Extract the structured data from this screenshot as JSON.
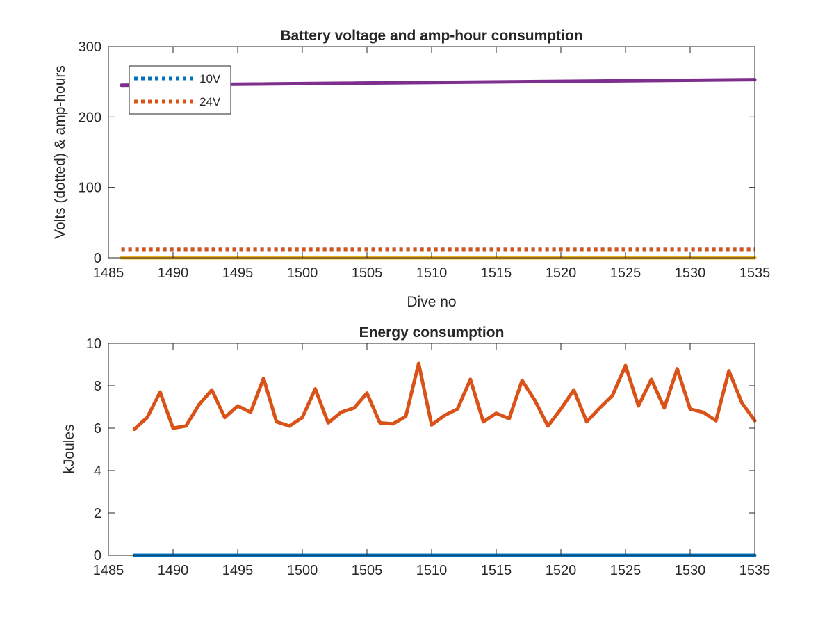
{
  "chart_data": [
    {
      "type": "line",
      "title": "Battery voltage and amp-hour consumption",
      "xlabel": "Dive no",
      "ylabel": "Volts (dotted) & amp-hours",
      "xlim": [
        1485,
        1535
      ],
      "ylim": [
        0,
        300
      ],
      "x_ticks": [
        "1485",
        "1490",
        "1495",
        "1500",
        "1505",
        "1510",
        "1515",
        "1520",
        "1525",
        "1530",
        "1535"
      ],
      "y_ticks": [
        "0",
        "100",
        "200",
        "300"
      ],
      "legend_position": "top-left",
      "series": [
        {
          "name": "10V",
          "style": "dotted",
          "color": "#0072BD",
          "x": [
            1486,
            1535
          ],
          "y": [
            12,
            12
          ],
          "in_legend": true
        },
        {
          "name": "24V",
          "style": "dotted",
          "color": "#D95319",
          "x": [
            1486,
            1535
          ],
          "y": [
            12,
            12
          ],
          "in_legend": true
        },
        {
          "style": "solid",
          "color": "#EDB120",
          "x": [
            1486,
            1535
          ],
          "y": [
            0,
            0
          ],
          "in_legend": false
        },
        {
          "style": "solid",
          "color": "#7E2F8E",
          "x": [
            1486,
            1535
          ],
          "y": [
            245,
            253
          ],
          "in_legend": false
        }
      ]
    },
    {
      "type": "line",
      "title": "Energy consumption",
      "xlabel": "",
      "ylabel": "kJoules",
      "xlim": [
        1485,
        1535
      ],
      "ylim": [
        0,
        10
      ],
      "x_ticks": [
        "1485",
        "1490",
        "1495",
        "1500",
        "1505",
        "1510",
        "1515",
        "1520",
        "1525",
        "1530",
        "1535"
      ],
      "y_ticks": [
        "0",
        "2",
        "4",
        "6",
        "8",
        "10"
      ],
      "series": [
        {
          "style": "solid",
          "color": "#0072BD",
          "x": [
            1487,
            1535
          ],
          "y": [
            0,
            0
          ]
        },
        {
          "style": "solid",
          "color": "#D95319",
          "x": [
            1487,
            1488,
            1489,
            1490,
            1491,
            1492,
            1493,
            1494,
            1495,
            1496,
            1497,
            1498,
            1499,
            1500,
            1501,
            1502,
            1503,
            1504,
            1505,
            1506,
            1507,
            1508,
            1509,
            1510,
            1511,
            1512,
            1513,
            1514,
            1515,
            1516,
            1517,
            1518,
            1519,
            1520,
            1521,
            1522,
            1523,
            1524,
            1525,
            1526,
            1527,
            1528,
            1529,
            1530,
            1531,
            1532,
            1533,
            1534,
            1535
          ],
          "y": [
            5.95,
            6.5,
            7.7,
            6.0,
            6.1,
            7.1,
            7.8,
            6.5,
            7.05,
            6.75,
            8.35,
            6.3,
            6.1,
            6.5,
            7.85,
            6.25,
            6.75,
            6.95,
            7.65,
            6.25,
            6.2,
            6.55,
            9.05,
            6.15,
            6.6,
            6.9,
            8.3,
            6.3,
            6.7,
            6.45,
            8.25,
            7.3,
            6.1,
            6.9,
            7.8,
            6.3,
            6.95,
            7.55,
            8.95,
            7.05,
            8.3,
            6.95,
            8.8,
            6.9,
            6.75,
            6.35,
            8.7,
            7.2,
            6.35
          ]
        }
      ]
    }
  ]
}
